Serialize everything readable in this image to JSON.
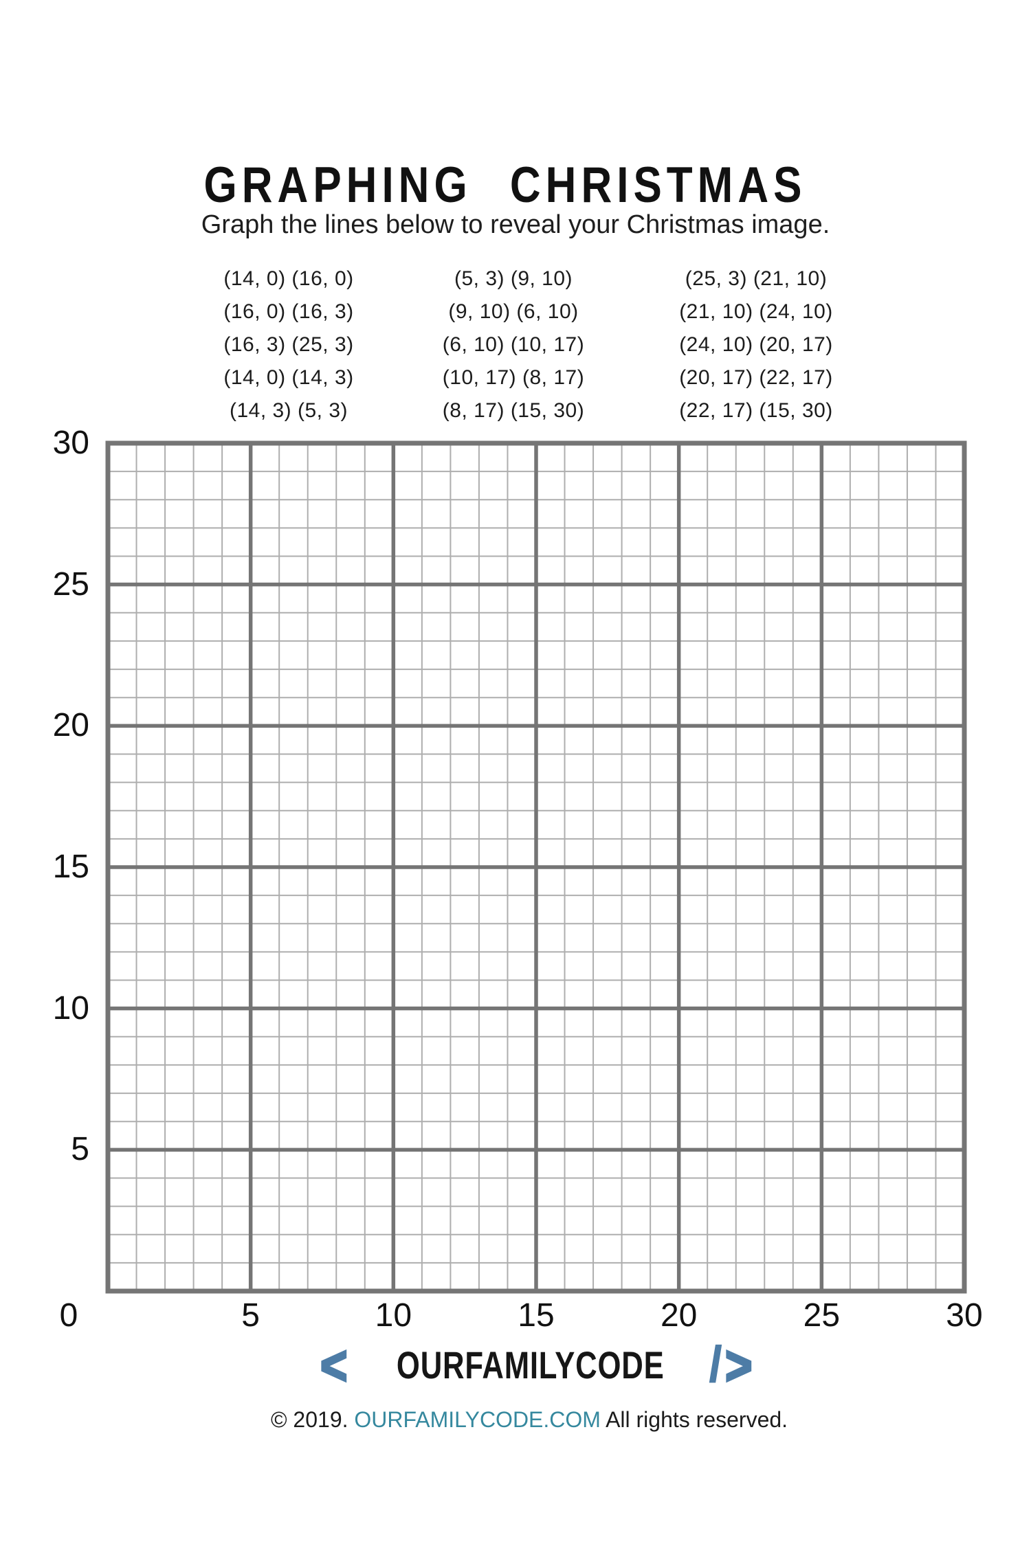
{
  "header": {
    "title": "GRAPHING CHRISTMAS",
    "subtitle": "Graph the lines below to reveal your Christmas image."
  },
  "coordinates": {
    "columns": [
      {
        "pairs": [
          "(14, 0) (16, 0)",
          "(16, 0) (16, 3)",
          "(16, 3) (25, 3)",
          "(14, 0) (14, 3)",
          "(14, 3) (5, 3)"
        ]
      },
      {
        "pairs": [
          "(5, 3) (9, 10)",
          "(9, 10) (6, 10)",
          "(6, 10) (10, 17)",
          "(10, 17) (8, 17)",
          "(8, 17) (15, 30)"
        ]
      },
      {
        "pairs": [
          "(25, 3) (21, 10)",
          "(21, 10) (24, 10)",
          "(24, 10) (20, 17)",
          "(20, 17) (22, 17)",
          "(22, 17) (15, 30)"
        ]
      }
    ]
  },
  "grid": {
    "units": 30,
    "major_every": 5,
    "minor_color": "#aeaeae",
    "major_color": "#757575",
    "y_tick_labels": [
      "30",
      "25",
      "20",
      "15",
      "10",
      "5"
    ],
    "x_tick_labels": [
      "5",
      "10",
      "15",
      "20",
      "25",
      "30"
    ],
    "origin_label": "0"
  },
  "footer": {
    "logo": {
      "open_bracket": "<",
      "name": "OURFAMILYCODE",
      "slash": "/",
      "close_bracket": ">",
      "accent_color": "#4d7ca6"
    },
    "copyright": {
      "prefix": "© 2019. ",
      "link": "OURFAMILYCODE.COM",
      "suffix": " All rights reserved.",
      "link_color": "#35889e"
    }
  }
}
